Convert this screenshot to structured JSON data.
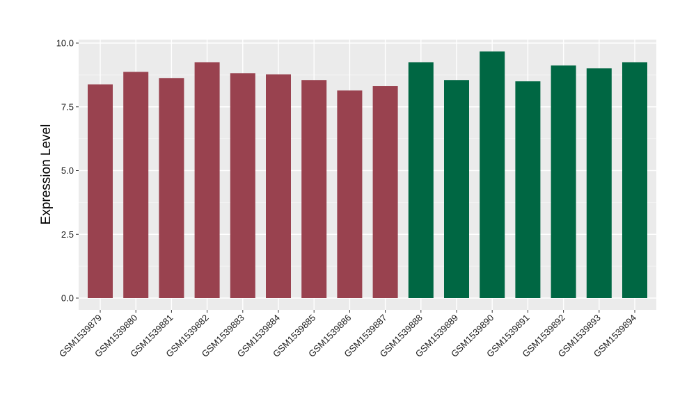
{
  "colors": {
    "panel_background": "#ebebeb",
    "grid_major": "#ffffff",
    "grid_minor": "#f5f5f5",
    "group_1": "#99424f",
    "group_2": "#006743"
  },
  "chart_data": {
    "type": "bar",
    "title": "",
    "xlabel": "",
    "ylabel": "Expression Level",
    "ylim": [
      0,
      10
    ],
    "yticks": [
      0.0,
      2.5,
      5.0,
      7.5,
      10.0
    ],
    "ytick_labels": [
      "0.0",
      "2.5",
      "5.0",
      "7.5",
      "10.0"
    ],
    "grid": true,
    "legend": "none",
    "categories": [
      "GSM1539879",
      "GSM1539880",
      "GSM1539881",
      "GSM1539882",
      "GSM1539883",
      "GSM1539884",
      "GSM1539885",
      "GSM1539886",
      "GSM1539887",
      "GSM1539888",
      "GSM1539889",
      "GSM1539890",
      "GSM1539891",
      "GSM1539892",
      "GSM1539893",
      "GSM1539894"
    ],
    "values": [
      8.38,
      8.87,
      8.63,
      9.25,
      8.82,
      8.77,
      8.55,
      8.14,
      8.31,
      9.25,
      8.55,
      9.67,
      8.5,
      9.12,
      9.01,
      9.25
    ],
    "group_index": [
      0,
      0,
      0,
      0,
      0,
      0,
      0,
      0,
      0,
      1,
      1,
      1,
      1,
      1,
      1,
      1
    ]
  }
}
